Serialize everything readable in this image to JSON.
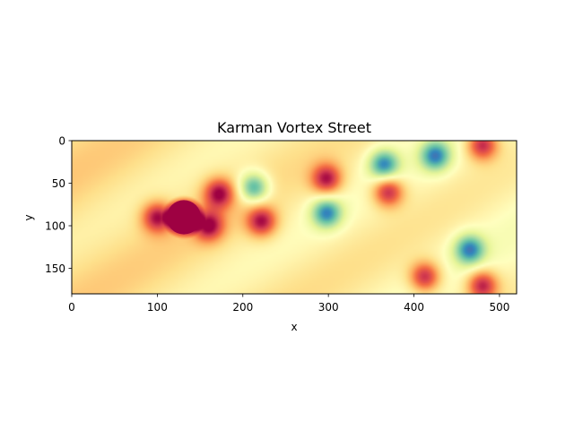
{
  "chart_data": {
    "type": "heatmap",
    "title": "Karman Vortex Street",
    "xlabel": "x",
    "ylabel": "y",
    "xlim": [
      0,
      520
    ],
    "ylim": [
      180,
      0
    ],
    "y_axis_inverted": true,
    "grid": false,
    "colormap": "Spectral",
    "x_ticks": [
      0,
      100,
      200,
      300,
      400,
      500
    ],
    "y_ticks": [
      0,
      50,
      100,
      150
    ],
    "obstacle": {
      "shape": "cylinder",
      "center": [
        131,
        90
      ],
      "radius": 20,
      "color": "#9e0142"
    },
    "vortices": [
      {
        "x": 172,
        "y": 62,
        "sign": 1
      },
      {
        "x": 160,
        "y": 100,
        "sign": 1
      },
      {
        "x": 222,
        "y": 95,
        "sign": 1
      },
      {
        "x": 213,
        "y": 55,
        "sign": -1
      },
      {
        "x": 298,
        "y": 45,
        "sign": 1
      },
      {
        "x": 298,
        "y": 85,
        "sign": -1
      },
      {
        "x": 370,
        "y": 60,
        "sign": 1
      },
      {
        "x": 365,
        "y": 28,
        "sign": -1
      },
      {
        "x": 425,
        "y": 18,
        "sign": -1
      },
      {
        "x": 480,
        "y": 5,
        "sign": 1
      },
      {
        "x": 413,
        "y": 160,
        "sign": 1
      },
      {
        "x": 465,
        "y": 128,
        "sign": -1
      },
      {
        "x": 480,
        "y": 170,
        "sign": 1
      },
      {
        "x": 100,
        "y": 90,
        "sign": 1
      }
    ]
  }
}
